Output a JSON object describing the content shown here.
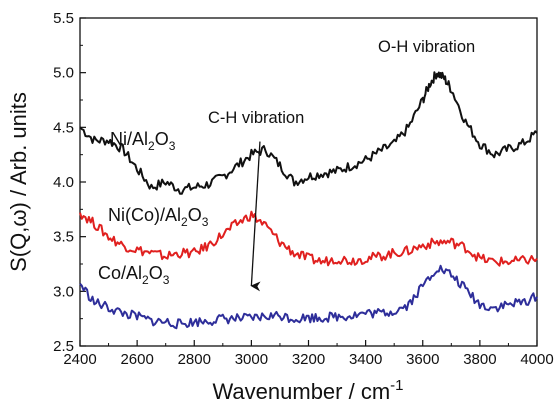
{
  "chart_data": {
    "type": "line",
    "title": "",
    "xlabel": "Wavenumber / cm",
    "xlabel_sup": "-1",
    "ylabel": "S(Q,ω) / Arb. units",
    "xlim": [
      2400,
      4000
    ],
    "ylim": [
      2.5,
      5.5
    ],
    "xticks": [
      "2400",
      "2600",
      "2800",
      "3000",
      "3200",
      "3400",
      "3600",
      "3800",
      "4000"
    ],
    "yticks": [
      "2.5",
      "3.0",
      "3.5",
      "4.0",
      "4.5",
      "5.0",
      "5.5"
    ],
    "grid": false,
    "series": [
      {
        "name": "Ni/Al2O3",
        "label_parts": [
          "Ni/Al",
          "2",
          "O",
          "3"
        ],
        "color": "#111111",
        "x": [
          2400,
          2450,
          2500,
          2550,
          2600,
          2650,
          2700,
          2750,
          2800,
          2850,
          2900,
          2950,
          3000,
          3050,
          3100,
          3150,
          3200,
          3250,
          3300,
          3350,
          3400,
          3450,
          3500,
          3550,
          3600,
          3625,
          3650,
          3675,
          3700,
          3750,
          3800,
          3850,
          3900,
          3950,
          4000
        ],
        "y": [
          4.5,
          4.38,
          4.38,
          4.3,
          4.12,
          3.95,
          4.0,
          3.93,
          3.95,
          3.98,
          4.05,
          4.15,
          4.25,
          4.3,
          4.15,
          4.0,
          4.05,
          4.08,
          4.1,
          4.15,
          4.2,
          4.28,
          4.35,
          4.5,
          4.75,
          4.9,
          5.0,
          4.95,
          4.85,
          4.55,
          4.35,
          4.25,
          4.3,
          4.35,
          4.45
        ]
      },
      {
        "name": "Ni(Co)/Al2O3",
        "label_parts": [
          "Ni(Co)/Al",
          "2",
          "O",
          "3"
        ],
        "color": "#e0201f",
        "x": [
          2400,
          2450,
          2500,
          2550,
          2600,
          2650,
          2700,
          2750,
          2800,
          2850,
          2900,
          2950,
          3000,
          3050,
          3100,
          3150,
          3200,
          3250,
          3300,
          3350,
          3400,
          3450,
          3500,
          3550,
          3600,
          3650,
          3700,
          3750,
          3800,
          3850,
          3900,
          3950,
          4000
        ],
        "y": [
          3.72,
          3.62,
          3.5,
          3.42,
          3.38,
          3.35,
          3.32,
          3.35,
          3.35,
          3.42,
          3.52,
          3.62,
          3.7,
          3.6,
          3.45,
          3.35,
          3.3,
          3.27,
          3.3,
          3.28,
          3.3,
          3.32,
          3.35,
          3.37,
          3.42,
          3.45,
          3.45,
          3.4,
          3.3,
          3.27,
          3.27,
          3.28,
          3.3
        ]
      },
      {
        "name": "Co/Al2O3",
        "label_parts": [
          "Co/Al",
          "2",
          "O",
          "3"
        ],
        "color": "#2e2e9a",
        "x": [
          2400,
          2450,
          2500,
          2550,
          2600,
          2650,
          2700,
          2750,
          2800,
          2850,
          2900,
          2950,
          3000,
          3050,
          3100,
          3150,
          3200,
          3250,
          3300,
          3350,
          3400,
          3450,
          3500,
          3550,
          3600,
          3650,
          3700,
          3750,
          3800,
          3850,
          3900,
          3950,
          4000
        ],
        "y": [
          3.07,
          2.9,
          2.85,
          2.8,
          2.77,
          2.73,
          2.72,
          2.7,
          2.72,
          2.73,
          2.75,
          2.75,
          2.75,
          2.77,
          2.78,
          2.75,
          2.76,
          2.76,
          2.77,
          2.78,
          2.8,
          2.8,
          2.82,
          2.88,
          3.05,
          3.22,
          3.15,
          3.02,
          2.88,
          2.85,
          2.88,
          2.9,
          2.95
        ]
      }
    ],
    "annotations": [
      {
        "text": "C-H vibration"
      },
      {
        "text": "O-H vibration"
      }
    ],
    "arrow": {
      "from": [
        3030,
        4.37
      ],
      "to": [
        3000,
        3.05
      ]
    }
  }
}
